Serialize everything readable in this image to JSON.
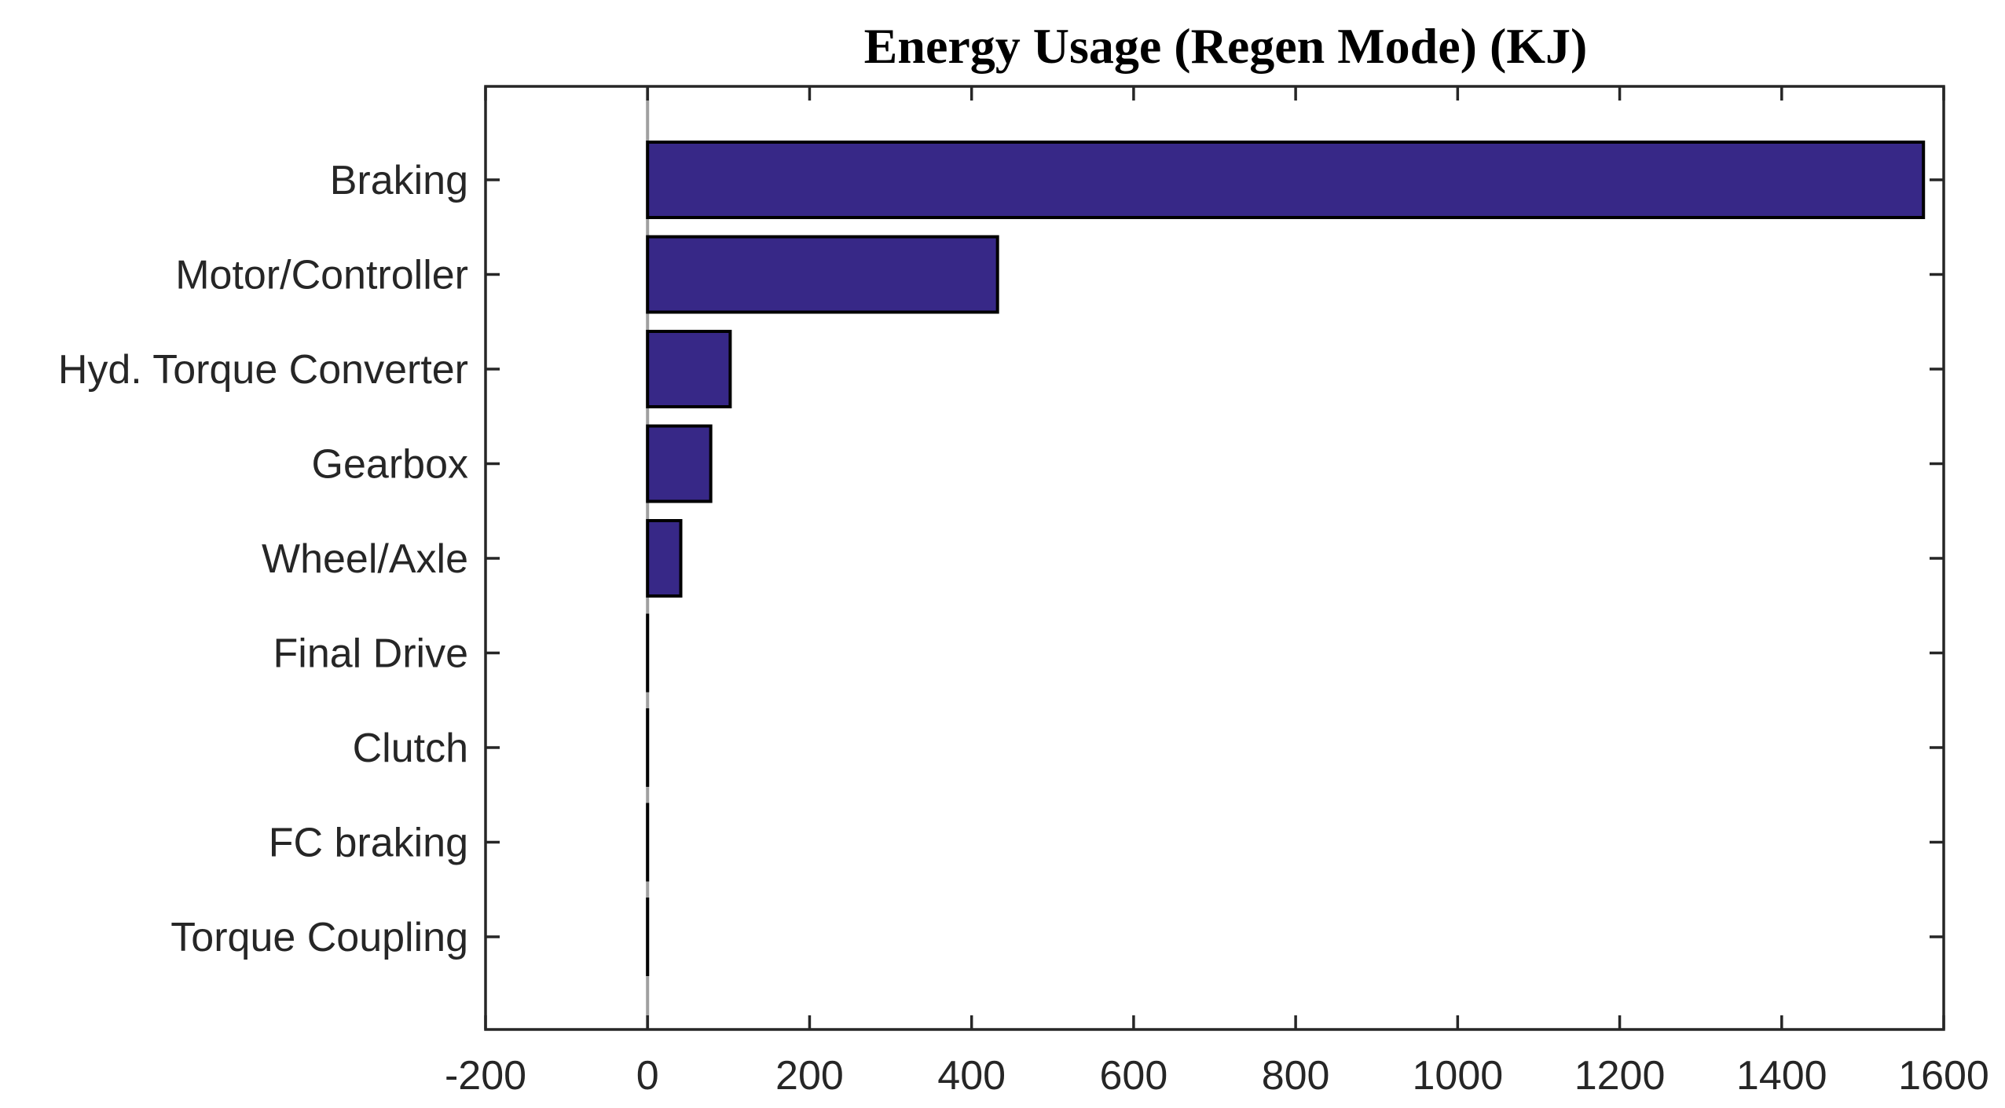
{
  "chart_data": {
    "type": "bar",
    "orientation": "horizontal",
    "title": "Energy Usage (Regen Mode) (KJ)",
    "xlabel": "",
    "ylabel": "",
    "categories": [
      "Braking",
      "Motor/Controller",
      "Hyd. Torque Converter",
      "Gearbox",
      "Wheel/Axle",
      "Final Drive",
      "Clutch",
      "FC braking",
      "Torque Coupling"
    ],
    "values": [
      1575,
      432,
      102,
      78,
      41,
      0,
      0,
      0,
      0
    ],
    "xlim": [
      -200,
      1600
    ],
    "xticks": [
      "-200",
      "0",
      "200",
      "400",
      "600",
      "800",
      "1000",
      "1200",
      "1400",
      "1600"
    ],
    "grid": false,
    "legend": "none",
    "colors": {
      "bar": "#372887",
      "bar_edge": "#000000",
      "axis": "#262626",
      "zero_line": "#a0a0a0"
    }
  }
}
